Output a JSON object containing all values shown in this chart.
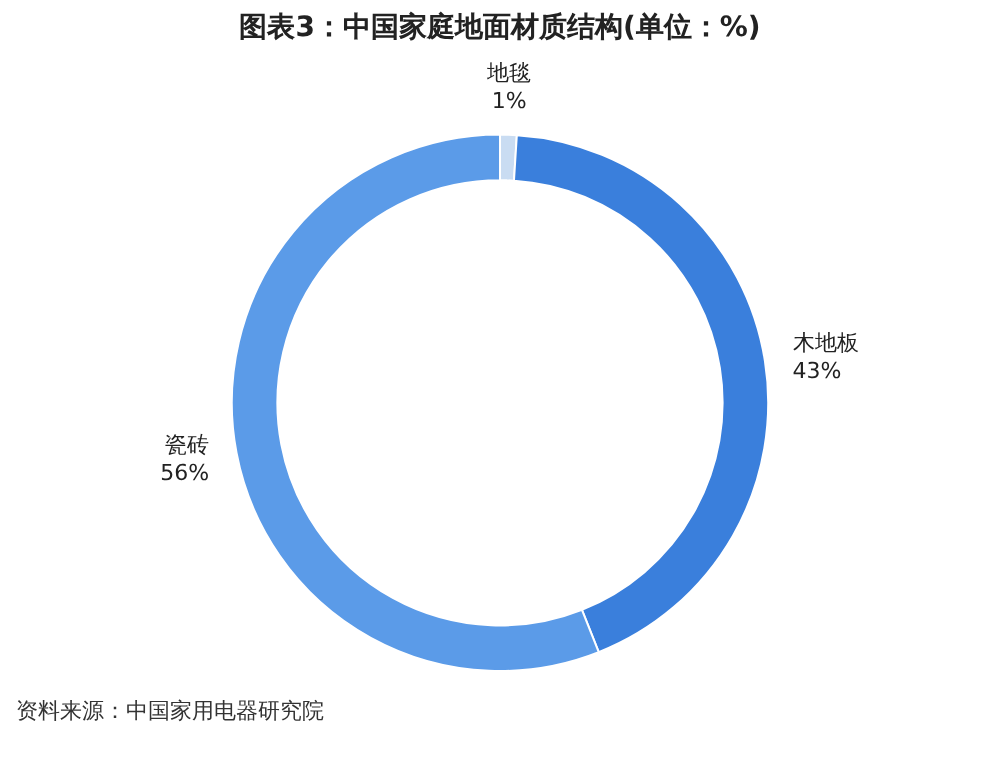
{
  "chart_data": {
    "type": "donut",
    "title": "图表3：中国家庭地面材质结构(单位：%)",
    "categories": [
      "地毯",
      "木地板",
      "瓷砖"
    ],
    "values": [
      1,
      43,
      56
    ],
    "value_labels": [
      "1%",
      "43%",
      "56%"
    ],
    "colors": [
      "#c9dcf2",
      "#3a7fdc",
      "#5b9be8"
    ],
    "legend": false,
    "annotations": [
      "资料来源：中国家用电器研究院"
    ]
  }
}
